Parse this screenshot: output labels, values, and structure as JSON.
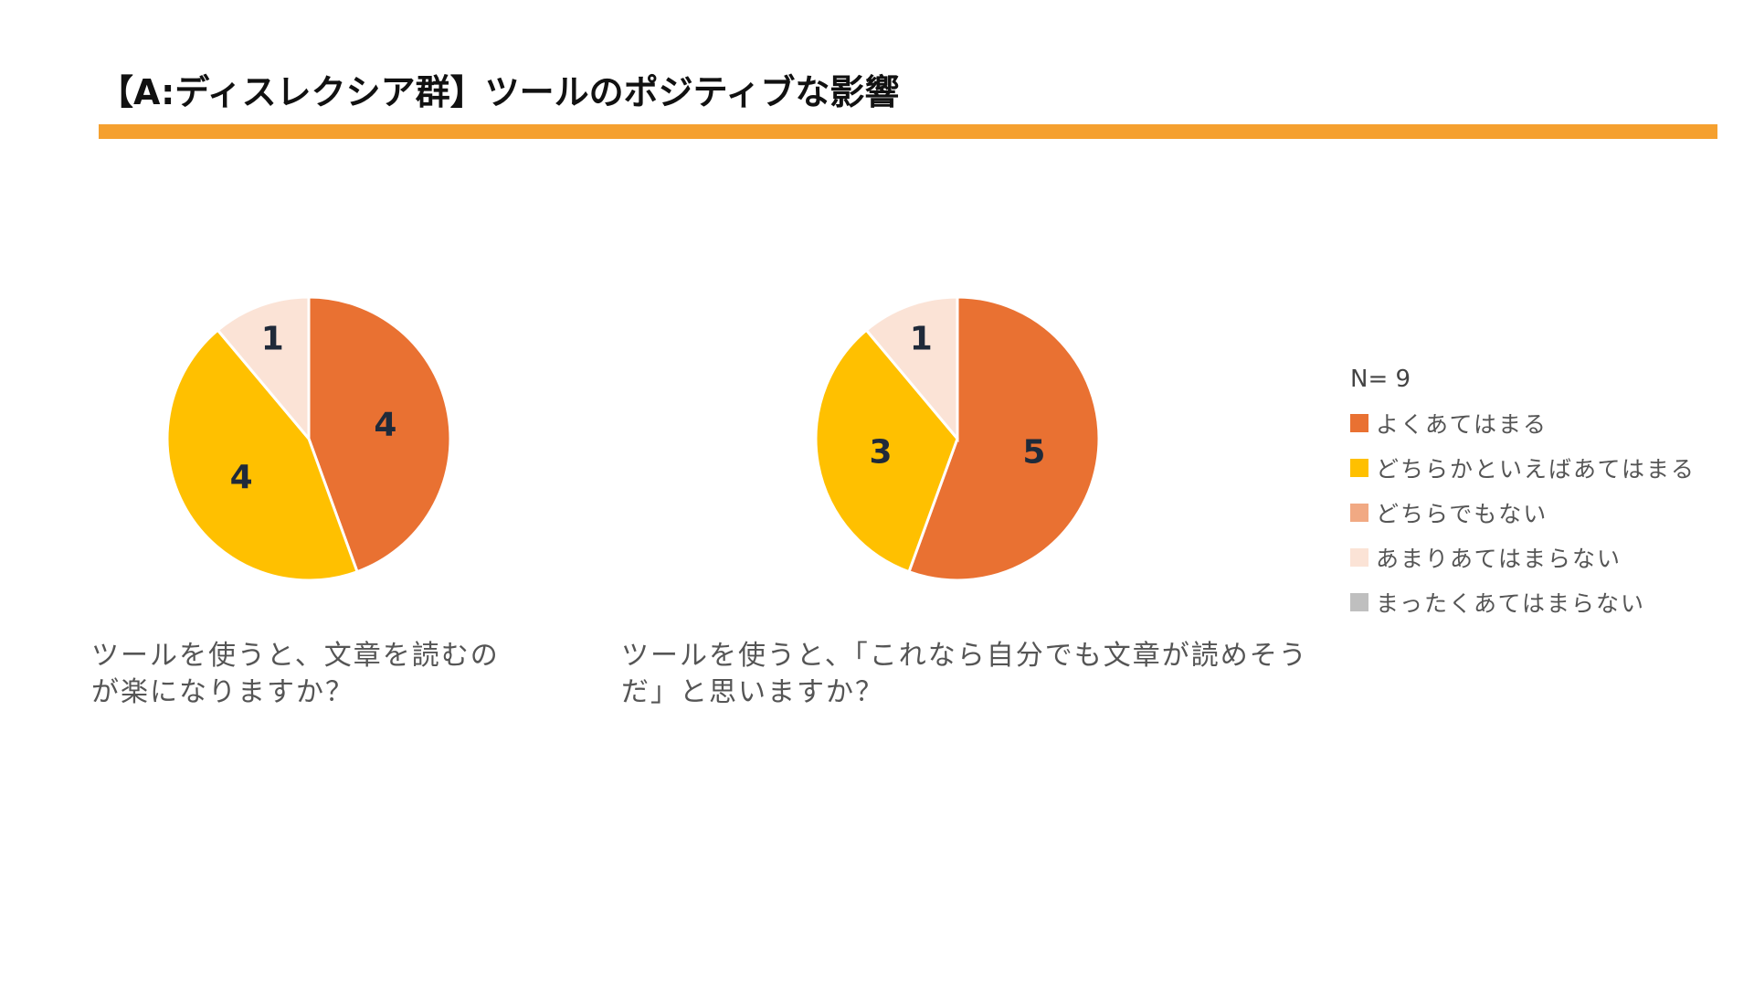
{
  "slide": {
    "title": "【A:ディスレクシア群】ツールのポジティブな影響",
    "rule_color": "#F5A02F"
  },
  "legend": {
    "n_label": "N= 9",
    "items": [
      {
        "label": "よくあてはまる",
        "color": "#E97132"
      },
      {
        "label": "どちらかといえばあてはまる",
        "color": "#FFC000"
      },
      {
        "label": "どちらでもない",
        "color": "#F1A983"
      },
      {
        "label": "あまりあてはまらない",
        "color": "#FBE3D6"
      },
      {
        "label": "まったくあてはまらない",
        "color": "#BFBFBF"
      }
    ]
  },
  "chart_data": [
    {
      "type": "pie",
      "question": "ツールを使うと、文章を読むのが楽になりますか？",
      "categories": [
        "よくあてはまる",
        "どちらかといえばあてはまる",
        "どちらでもない",
        "あまりあてはまらない",
        "まったくあてはまらない"
      ],
      "values": [
        4,
        4,
        0,
        1,
        0
      ],
      "data_labels": [
        "4",
        "4",
        "",
        "1",
        ""
      ]
    },
    {
      "type": "pie",
      "question": "ツールを使うと、「これなら自分でも文章が読めそうだ」と思いますか？",
      "categories": [
        "よくあてはまる",
        "どちらかといえばあてはまる",
        "どちらでもない",
        "あまりあてはまらない",
        "まったくあてはまらない"
      ],
      "values": [
        5,
        3,
        0,
        1,
        0
      ],
      "data_labels": [
        "5",
        "3",
        "",
        "1",
        ""
      ]
    }
  ]
}
